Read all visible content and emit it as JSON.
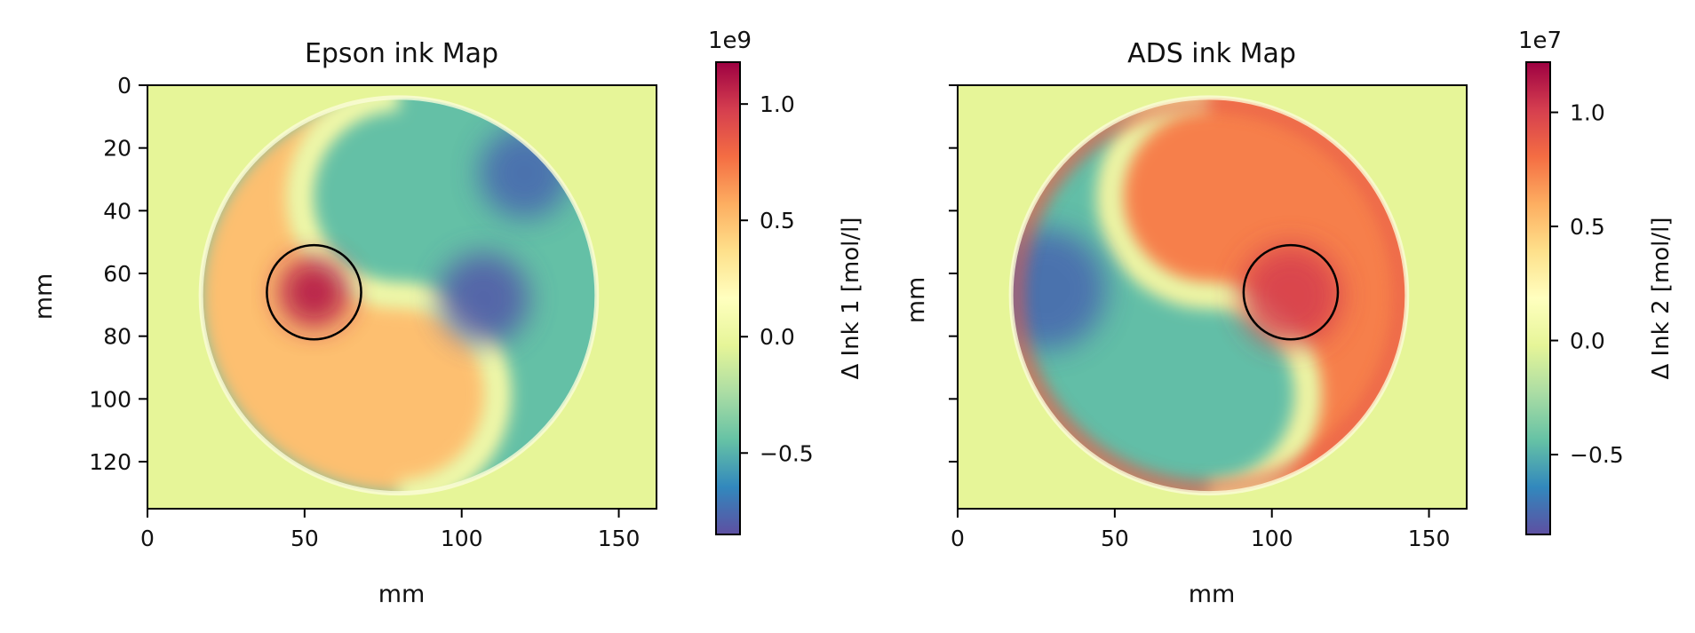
{
  "chart_data": [
    {
      "type": "heatmap",
      "title": "Epson ink Map",
      "xlabel": "mm",
      "ylabel": "mm",
      "xlim": [
        0,
        162
      ],
      "ylim": [
        135,
        0
      ],
      "x_ticks": [
        0,
        50,
        100,
        150
      ],
      "y_ticks": [
        0,
        20,
        40,
        60,
        80,
        100,
        120
      ],
      "x_tick_labels": [
        "0",
        "50",
        "100",
        "150"
      ],
      "y_tick_labels": [
        "0",
        "20",
        "40",
        "60",
        "80",
        "100",
        "120"
      ],
      "disk": {
        "center": [
          80,
          67
        ],
        "radius": 63
      },
      "background_value": 0.0,
      "left_half_value": 0.5,
      "right_half_value": -0.45,
      "hotspots": [
        {
          "x": 53,
          "y": 66,
          "value": 1.1,
          "radius": 7
        },
        {
          "x": 107,
          "y": 68,
          "value": -0.8,
          "radius": 9
        },
        {
          "x": 120,
          "y": 28,
          "value": -0.75,
          "radius": 9
        }
      ],
      "circle_marker": {
        "center": [
          53,
          66
        ],
        "radius": 15
      },
      "colorbar": {
        "label": "Δ Ink 1 [mol/l]",
        "multiplier": "1e9",
        "range": [
          -0.85,
          1.18
        ],
        "ticks": [
          -0.5,
          0.0,
          0.5,
          1.0
        ],
        "tick_labels": [
          "−0.5",
          "0.0",
          "0.5",
          "1.0"
        ]
      }
    },
    {
      "type": "heatmap",
      "title": "ADS ink Map",
      "xlabel": "mm",
      "ylabel": "mm",
      "xlim": [
        0,
        162
      ],
      "ylim": [
        135,
        0
      ],
      "x_ticks": [
        0,
        50,
        100,
        150
      ],
      "y_ticks": [
        0,
        20,
        40,
        60,
        80,
        100,
        120
      ],
      "x_tick_labels": [
        "0",
        "50",
        "100",
        "150"
      ],
      "y_tick_labels": [],
      "disk": {
        "center": [
          80,
          67
        ],
        "radius": 63
      },
      "background_value": 0.0,
      "left_half_value": -0.45,
      "right_half_value": 0.75,
      "rim_value": 0.9,
      "hotspots": [
        {
          "x": 106,
          "y": 67,
          "value": 1.0,
          "radius": 10
        },
        {
          "x": 28,
          "y": 65,
          "value": -0.75,
          "radius": 12
        }
      ],
      "circle_marker": {
        "center": [
          106,
          66
        ],
        "radius": 15
      },
      "colorbar": {
        "label": "Δ Ink 2 [mol/l]",
        "multiplier": "1e7",
        "range": [
          -0.85,
          1.22
        ],
        "ticks": [
          -0.5,
          0.0,
          0.5,
          1.0
        ],
        "tick_labels": [
          "−0.5",
          "0.0",
          "0.5",
          "1.0"
        ]
      }
    }
  ]
}
